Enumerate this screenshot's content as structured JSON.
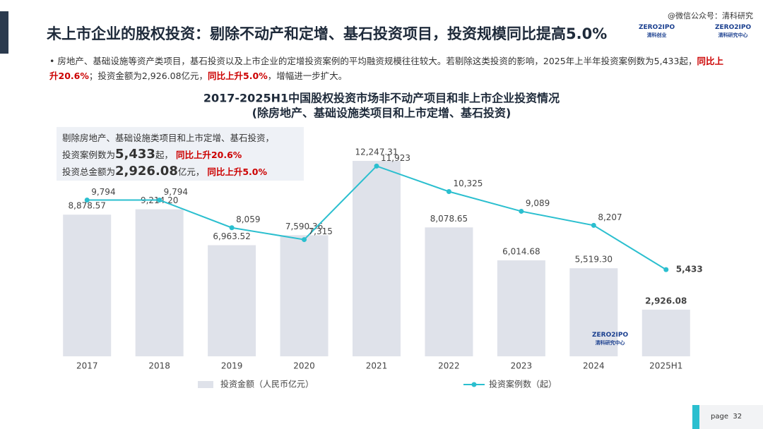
{
  "header": {
    "title": "未上市企业的股权投资：剔除不动产和定增、基石投资项目，投资规模同比提高5.0%",
    "watermark": "@微信公众号：清科研究",
    "logo1": "ZERO2IPO",
    "logo1_sub": "清科创业",
    "logo2": "ZERO2IPO",
    "logo2_sub": "清科研究中心"
  },
  "bullet": [
    "房地产、基础设施等资产类项目，基石投资以及上市企业的定增投资案例的平均融资规模往往较大。若剔除这类投资的影响，2025年上半年投资案例数为5,433起，",
    "同比上升20.6%",
    "；投资金额为2,926.08亿元，",
    "同比上升5.0%",
    "，增幅进一步扩大。"
  ],
  "callout": {
    "line1": "剔除房地产、基础设施类项目和上市定增、基石投资，",
    "line2": [
      "投资案例数为",
      "5,433",
      "起，",
      "同比上升20.6%"
    ],
    "line3": [
      "投资总金额为",
      "2,926.08",
      "亿元，",
      "同比上升5.0%"
    ]
  },
  "chart_data": {
    "type": "bar_line",
    "title": "2017-2025H1中国股权投资市场非不动产项目和非上市企业投资情况",
    "subtitle": "(除房地产、基础设施类项目和上市定增、基石投资)",
    "categories": [
      "2017",
      "2018",
      "2019",
      "2020",
      "2021",
      "2022",
      "2023",
      "2024",
      "2025H1"
    ],
    "ylim": [
      0,
      13000
    ],
    "series": [
      {
        "name": "投资金额（人民币亿元）",
        "type": "bar",
        "color": "#dfe2ea",
        "values": [
          8878.57,
          9214.2,
          6963.52,
          7590.36,
          12247.31,
          8078.65,
          6014.68,
          5519.3,
          2926.08
        ],
        "value_labels": [
          "8,878.57",
          "9,214.20",
          "6,963.52",
          "7,590.36",
          "12,247.31",
          "8,078.65",
          "6,014.68",
          "5,519.30",
          "2,926.08"
        ]
      },
      {
        "name": "投资案例数（起）",
        "type": "line",
        "color": "#2bbfcf",
        "values": [
          9794,
          9794,
          8059,
          7315,
          11923,
          10325,
          9089,
          8207,
          5433
        ],
        "value_labels": [
          "9,794",
          "9,794",
          "8,059",
          "7,315",
          "11,923",
          "10,325",
          "9,089",
          "8,207",
          "5,433"
        ]
      }
    ],
    "legend": "bottom",
    "chart_logo": "ZERO2IPO",
    "chart_logo_sub": "清科研究中心"
  },
  "footer": {
    "page": "page  32"
  }
}
